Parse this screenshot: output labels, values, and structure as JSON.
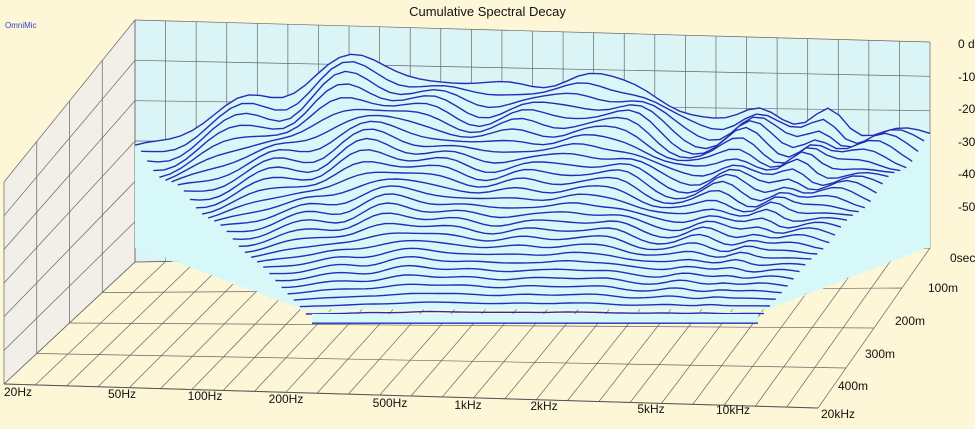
{
  "chart_data": {
    "type": "waterfall",
    "title": "Cumulative Spectral Decay",
    "tag": "OmniMic",
    "x_ticks": [
      "20Hz",
      "50Hz",
      "100Hz",
      "200Hz",
      "500Hz",
      "1kHz",
      "2kHz",
      "5kHz",
      "10kHz",
      "20kHz"
    ],
    "y_ticks": [
      "0 d",
      "-10",
      "-20",
      "-30",
      "-40",
      "-50"
    ],
    "z_ticks": [
      "0sec",
      "100m",
      "200m",
      "300m",
      "400m"
    ],
    "slices": 30,
    "grid": true,
    "colors": {
      "background": "#fdf7d8",
      "fill": "#d6f8f8",
      "trace": "#2a2ab8",
      "grid": "#666666"
    }
  }
}
